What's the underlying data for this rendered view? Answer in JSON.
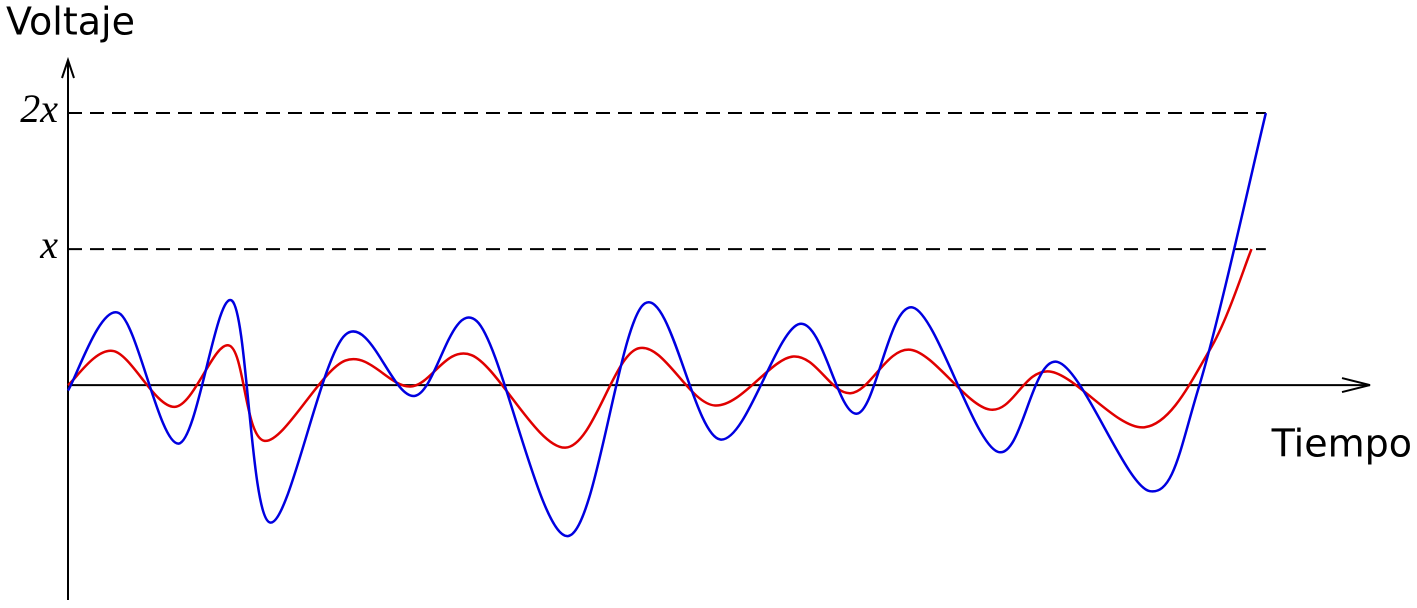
{
  "chart_data": {
    "type": "line",
    "ylabel": "Voltaje",
    "xlabel": "Tiempo",
    "xlim": [
      0,
      100
    ],
    "ylim": [
      -1.58,
      2.39
    ],
    "yticks": [
      {
        "value": 1,
        "label": "x"
      },
      {
        "value": 2,
        "label": "2x"
      }
    ],
    "grid": true,
    "x": [
      0,
      3.5,
      8.2,
      12.4,
      15.1,
      21.3,
      26.3,
      31.0,
      38.2,
      43.8,
      49.7,
      55.7,
      60.1,
      64.7,
      70.8,
      75.4,
      82.7,
      87.7,
      90.9
    ],
    "series": [
      {
        "color": "#e00000",
        "x": [
          0,
          3.5,
          8.2,
          12.4,
          15.1,
          21.3,
          26.3,
          31.0,
          38.2,
          43.8,
          49.7,
          55.7,
          60.1,
          64.7,
          70.8,
          75.4,
          82.7,
          87.7,
          90.9
        ],
        "values": [
          0,
          0.25,
          -0.16,
          0.29,
          -0.41,
          0.18,
          -0.01,
          0.22,
          -0.46,
          0.27,
          -0.15,
          0.21,
          -0.06,
          0.26,
          -0.18,
          0.1,
          -0.31,
          0.26,
          1
        ]
      },
      {
        "color": "#0000e0",
        "x": [
          0,
          3.9,
          8.5,
          12.6,
          15.5,
          21.3,
          26.6,
          31.4,
          38.4,
          44.3,
          50.1,
          56.2,
          60.6,
          64.9,
          71.4,
          76.0,
          83.1,
          86.9,
          92.0
        ],
        "values": [
          -0.04,
          0.53,
          -0.43,
          0.62,
          -1.01,
          0.37,
          -0.08,
          0.47,
          -1.11,
          0.6,
          -0.4,
          0.45,
          -0.21,
          0.57,
          -0.49,
          0.17,
          -0.78,
          0,
          2
        ]
      }
    ]
  }
}
